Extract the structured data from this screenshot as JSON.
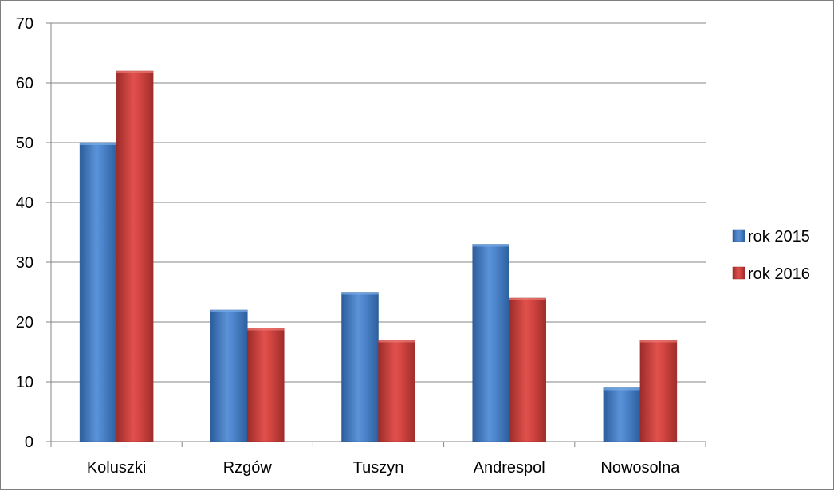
{
  "chart_data": {
    "type": "bar",
    "categories": [
      "Koluszki",
      "Rzgów",
      "Tuszyn",
      "Andrespol",
      "Nowosolna"
    ],
    "series": [
      {
        "name": "rok 2015",
        "values": [
          50,
          22,
          25,
          33,
          9
        ],
        "color": "#4a7ebb"
      },
      {
        "name": "rok 2016",
        "values": [
          62,
          19,
          17,
          24,
          17
        ],
        "color": "#be4b48"
      }
    ],
    "title": "",
    "xlabel": "",
    "ylabel": "",
    "ylim": [
      0,
      70
    ],
    "y_ticks": [
      "0",
      "10",
      "20",
      "30",
      "40",
      "50",
      "60",
      "70"
    ],
    "grid": true,
    "legend_position": "right"
  }
}
